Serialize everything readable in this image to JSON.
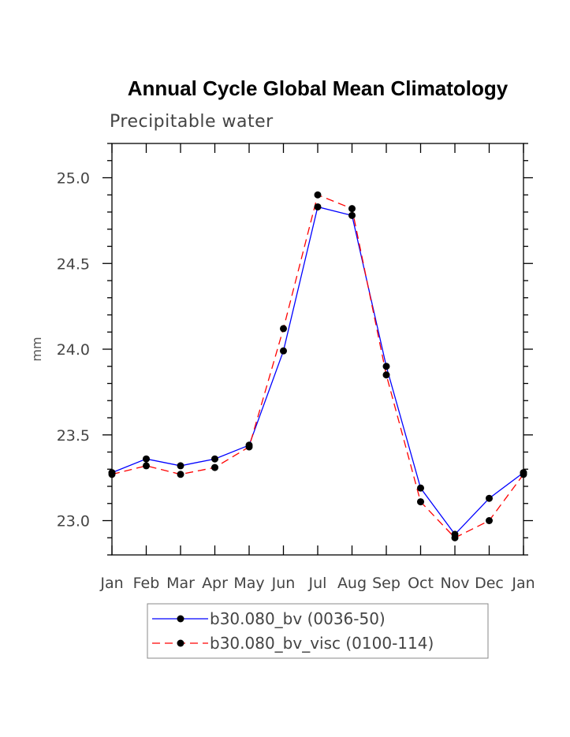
{
  "chart_data": {
    "type": "line",
    "title": "Annual Cycle Global Mean Climatology",
    "subtitle": "Precipitable water",
    "xlabel": "",
    "ylabel": "mm",
    "categories": [
      "Jan",
      "Feb",
      "Mar",
      "Apr",
      "May",
      "Jun",
      "Jul",
      "Aug",
      "Sep",
      "Oct",
      "Nov",
      "Dec",
      "Jan"
    ],
    "yticks": [
      23.0,
      23.5,
      24.0,
      24.5,
      25.0
    ],
    "ytick_labels": [
      "23.0",
      "23.5",
      "24.0",
      "24.5",
      "25.0"
    ],
    "ylim": [
      22.8,
      25.2
    ],
    "grid": false,
    "legend_position": "bottom",
    "series": [
      {
        "name": "b30.080_bv (0036-50)",
        "color": "#0000ff",
        "dash": "solid",
        "values": [
          23.28,
          23.36,
          23.32,
          23.36,
          23.44,
          23.99,
          24.83,
          24.78,
          23.9,
          23.19,
          22.92,
          23.13,
          23.28
        ]
      },
      {
        "name": "b30.080_bv_visc (0100-114)",
        "color": "#ff0000",
        "dash": "dashed",
        "values": [
          23.27,
          23.32,
          23.27,
          23.31,
          23.43,
          24.12,
          24.9,
          24.82,
          23.85,
          23.11,
          22.9,
          23.0,
          23.27
        ]
      }
    ]
  }
}
